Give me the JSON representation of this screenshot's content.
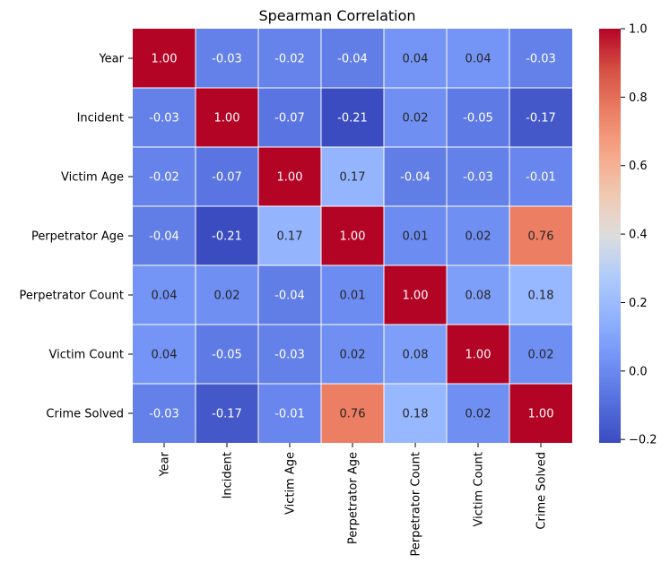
{
  "chart_data": {
    "type": "heatmap",
    "title": "Spearman Correlation",
    "labels": [
      "Year",
      "Incident",
      "Victim Age",
      "Perpetrator Age",
      "Perpetrator Count",
      "Victim Count",
      "Crime Solved"
    ],
    "values": [
      [
        1.0,
        -0.03,
        -0.02,
        -0.04,
        0.04,
        0.04,
        -0.03
      ],
      [
        -0.03,
        1.0,
        -0.07,
        -0.21,
        0.02,
        -0.05,
        -0.17
      ],
      [
        -0.02,
        -0.07,
        1.0,
        0.17,
        -0.04,
        -0.03,
        -0.01
      ],
      [
        -0.04,
        -0.21,
        0.17,
        1.0,
        0.01,
        0.02,
        0.76
      ],
      [
        0.04,
        0.02,
        -0.04,
        0.01,
        1.0,
        0.08,
        0.18
      ],
      [
        0.04,
        -0.05,
        -0.03,
        0.02,
        0.08,
        1.0,
        0.02
      ],
      [
        -0.03,
        -0.17,
        -0.01,
        0.76,
        0.18,
        0.02,
        1.0
      ]
    ],
    "annotation_format": "0.00",
    "colormap": "coolwarm",
    "vmin": -0.21,
    "vmax": 1.0,
    "colorbar": {
      "ticks": [
        -0.2,
        0.0,
        0.2,
        0.4,
        0.6,
        0.8,
        1.0
      ],
      "tick_labels": [
        "−0.2",
        "0.0",
        "0.2",
        "0.4",
        "0.6",
        "0.8",
        "1.0"
      ]
    },
    "grid_line_color": "#ffffff",
    "legend_placement": "right"
  }
}
